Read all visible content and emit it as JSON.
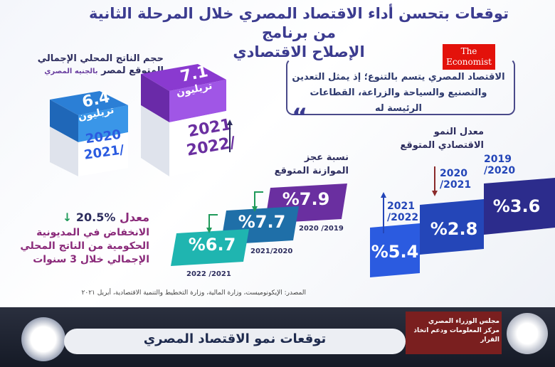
{
  "title_line1": "توقعات بتحسن أداء الاقتصاد المصري  خلال المرحلة الثانية من برنامج",
  "title_line2": "الإصلاح الاقتصادي",
  "economist_logo": "The Economist",
  "quote_line1": "الاقتصاد المصري يتسم بالتنوع؛ إذ يمثل التعدين",
  "quote_line2": "والتصنيع والسياحة والزراعة، القطاعات الرئيسة له",
  "gdp": {
    "title": "حجم الناتج المحلي الإجمالي",
    "subtitle": "المتوقع لمصر",
    "subtitle_small": "بالجنيه المصري",
    "items": [
      {
        "value": "6.4",
        "unit": "تريليون",
        "year1": "2020",
        "year2": "2021/"
      },
      {
        "value": "7.1",
        "unit": "تريليون",
        "year1": "2021",
        "year2": "2022/"
      }
    ]
  },
  "growth": {
    "title_line1": "معدل النمو",
    "title_line2": "الاقتصادي المتوقع",
    "items": [
      {
        "value": "%3.6",
        "year": "2019\n/2020",
        "color": "#2c2c8c"
      },
      {
        "value": "%2.8",
        "year": "2020\n/2021",
        "color": "#2446b8"
      },
      {
        "value": "%5.4",
        "year": "2021\n/2022",
        "color": "#2b5be0"
      }
    ]
  },
  "deficit": {
    "title_line1": "نسبة عجز",
    "title_line2": "الموازنة المتوقع",
    "items": [
      {
        "value": "%7.9",
        "year": "2020 /2019",
        "color": "#6a2fa0"
      },
      {
        "value": "%7.7",
        "year": "2021/2020",
        "color": "#1f6fa8"
      },
      {
        "value": "%6.7",
        "year": "2022 /2021",
        "color": "#1fb5b0"
      }
    ]
  },
  "debt": {
    "value": "%20.5",
    "label": "معدل",
    "text_line1": "الانخفاض في المديونية",
    "text_line2": "الحكومية من الناتج المحلي",
    "text_line3": "الإجمالي خلال 3 سنوات"
  },
  "source": "المصدر: الإيكونوميست، وزارة المالية، وزارة التخطيط والتنمية الاقتصادية، أبريل ٢٠٢١",
  "footer": {
    "title": "توقعات نمو الاقتصاد المصري",
    "org_line1": "مجلس الوزراء المصري",
    "org_line2": "مركز المعلومات ودعم اتخاذ القرار"
  }
}
